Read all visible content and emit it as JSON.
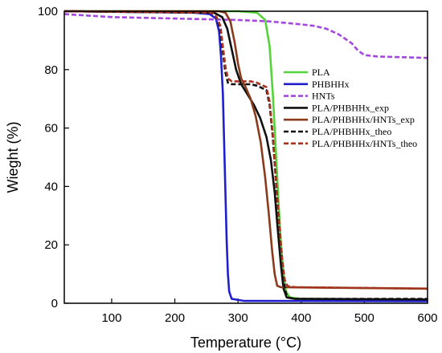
{
  "chart_data": {
    "type": "line",
    "title": "",
    "xlabel": "Temperature (°C)",
    "ylabel": "Wieght (%)",
    "xlim": [
      25,
      600
    ],
    "ylim": [
      0,
      100
    ],
    "xticks": [
      100,
      200,
      300,
      400,
      500,
      600
    ],
    "yticks": [
      0,
      20,
      40,
      60,
      80,
      100
    ],
    "legend_position": "right-middle",
    "series": [
      {
        "name": "PLA",
        "color": "#55d43a",
        "dash": "solid",
        "points": [
          [
            25,
            100
          ],
          [
            300,
            100
          ],
          [
            330,
            99.5
          ],
          [
            343,
            97
          ],
          [
            350,
            88
          ],
          [
            355,
            72
          ],
          [
            360,
            52
          ],
          [
            364,
            35
          ],
          [
            368,
            20
          ],
          [
            372,
            10
          ],
          [
            376,
            4
          ],
          [
            382,
            2
          ],
          [
            400,
            1.5
          ],
          [
            600,
            1.2
          ]
        ]
      },
      {
        "name": "PHBHHx",
        "color": "#1f1fcf",
        "dash": "solid",
        "points": [
          [
            25,
            100
          ],
          [
            230,
            99.5
          ],
          [
            255,
            99
          ],
          [
            265,
            97.5
          ],
          [
            270,
            93
          ],
          [
            273,
            85
          ],
          [
            276,
            72
          ],
          [
            278,
            55
          ],
          [
            280,
            38
          ],
          [
            282,
            22
          ],
          [
            284,
            10
          ],
          [
            286,
            4
          ],
          [
            290,
            1.5
          ],
          [
            310,
            0.8
          ],
          [
            600,
            0.7
          ]
        ]
      },
      {
        "name": "HNTs",
        "color": "#a448e0",
        "dash": "dash",
        "points": [
          [
            25,
            99
          ],
          [
            100,
            98
          ],
          [
            200,
            97.5
          ],
          [
            300,
            97
          ],
          [
            350,
            96.5
          ],
          [
            400,
            95.5
          ],
          [
            420,
            95
          ],
          [
            440,
            94
          ],
          [
            460,
            92
          ],
          [
            480,
            89
          ],
          [
            490,
            86.5
          ],
          [
            500,
            85
          ],
          [
            520,
            84.5
          ],
          [
            600,
            84
          ]
        ]
      },
      {
        "name": "PLA/PHBHHx_exp",
        "color": "#111111",
        "dash": "solid",
        "points": [
          [
            25,
            100
          ],
          [
            262,
            99.5
          ],
          [
            275,
            98
          ],
          [
            283,
            94
          ],
          [
            290,
            87
          ],
          [
            297,
            80
          ],
          [
            305,
            75
          ],
          [
            315,
            71.5
          ],
          [
            325,
            68
          ],
          [
            335,
            63.5
          ],
          [
            345,
            57
          ],
          [
            352,
            49
          ],
          [
            358,
            38
          ],
          [
            363,
            25
          ],
          [
            368,
            13
          ],
          [
            372,
            5
          ],
          [
            377,
            2
          ],
          [
            390,
            1.5
          ],
          [
            600,
            1.3
          ]
        ]
      },
      {
        "name": "PLA/PHBHHx/HNTs_exp",
        "color": "#8b3a1c",
        "dash": "solid",
        "points": [
          [
            25,
            100
          ],
          [
            270,
            100
          ],
          [
            280,
            99.5
          ],
          [
            288,
            96.5
          ],
          [
            295,
            89
          ],
          [
            300,
            82
          ],
          [
            305,
            77
          ],
          [
            312,
            74
          ],
          [
            320,
            70
          ],
          [
            328,
            64
          ],
          [
            336,
            55
          ],
          [
            343,
            43
          ],
          [
            349,
            30
          ],
          [
            354,
            18
          ],
          [
            358,
            10
          ],
          [
            362,
            6
          ],
          [
            368,
            5.5
          ],
          [
            600,
            5
          ]
        ]
      },
      {
        "name": "PLA/PHBHHx_theo",
        "color": "#111111",
        "dash": "dash",
        "points": [
          [
            25,
            100
          ],
          [
            258,
            99.5
          ],
          [
            266,
            98
          ],
          [
            272,
            94
          ],
          [
            276,
            86
          ],
          [
            280,
            79
          ],
          [
            284,
            75.5
          ],
          [
            290,
            75
          ],
          [
            320,
            75
          ],
          [
            330,
            74.5
          ],
          [
            345,
            73
          ],
          [
            350,
            68
          ],
          [
            355,
            57
          ],
          [
            360,
            42
          ],
          [
            365,
            26
          ],
          [
            370,
            13
          ],
          [
            374,
            5
          ],
          [
            378,
            2
          ],
          [
            390,
            1.5
          ],
          [
            600,
            1.5
          ]
        ]
      },
      {
        "name": "PLA/PHBHHx/HNTs_theo",
        "color": "#a8321c",
        "dash": "dash",
        "points": [
          [
            25,
            100
          ],
          [
            258,
            99.5
          ],
          [
            266,
            98
          ],
          [
            272,
            95
          ],
          [
            276,
            88
          ],
          [
            280,
            81
          ],
          [
            284,
            77
          ],
          [
            290,
            76
          ],
          [
            320,
            76
          ],
          [
            330,
            75.5
          ],
          [
            345,
            74
          ],
          [
            350,
            69
          ],
          [
            355,
            58
          ],
          [
            360,
            43
          ],
          [
            365,
            28
          ],
          [
            370,
            15
          ],
          [
            374,
            8
          ],
          [
            378,
            6
          ],
          [
            390,
            5.5
          ],
          [
            600,
            5
          ]
        ]
      }
    ]
  }
}
